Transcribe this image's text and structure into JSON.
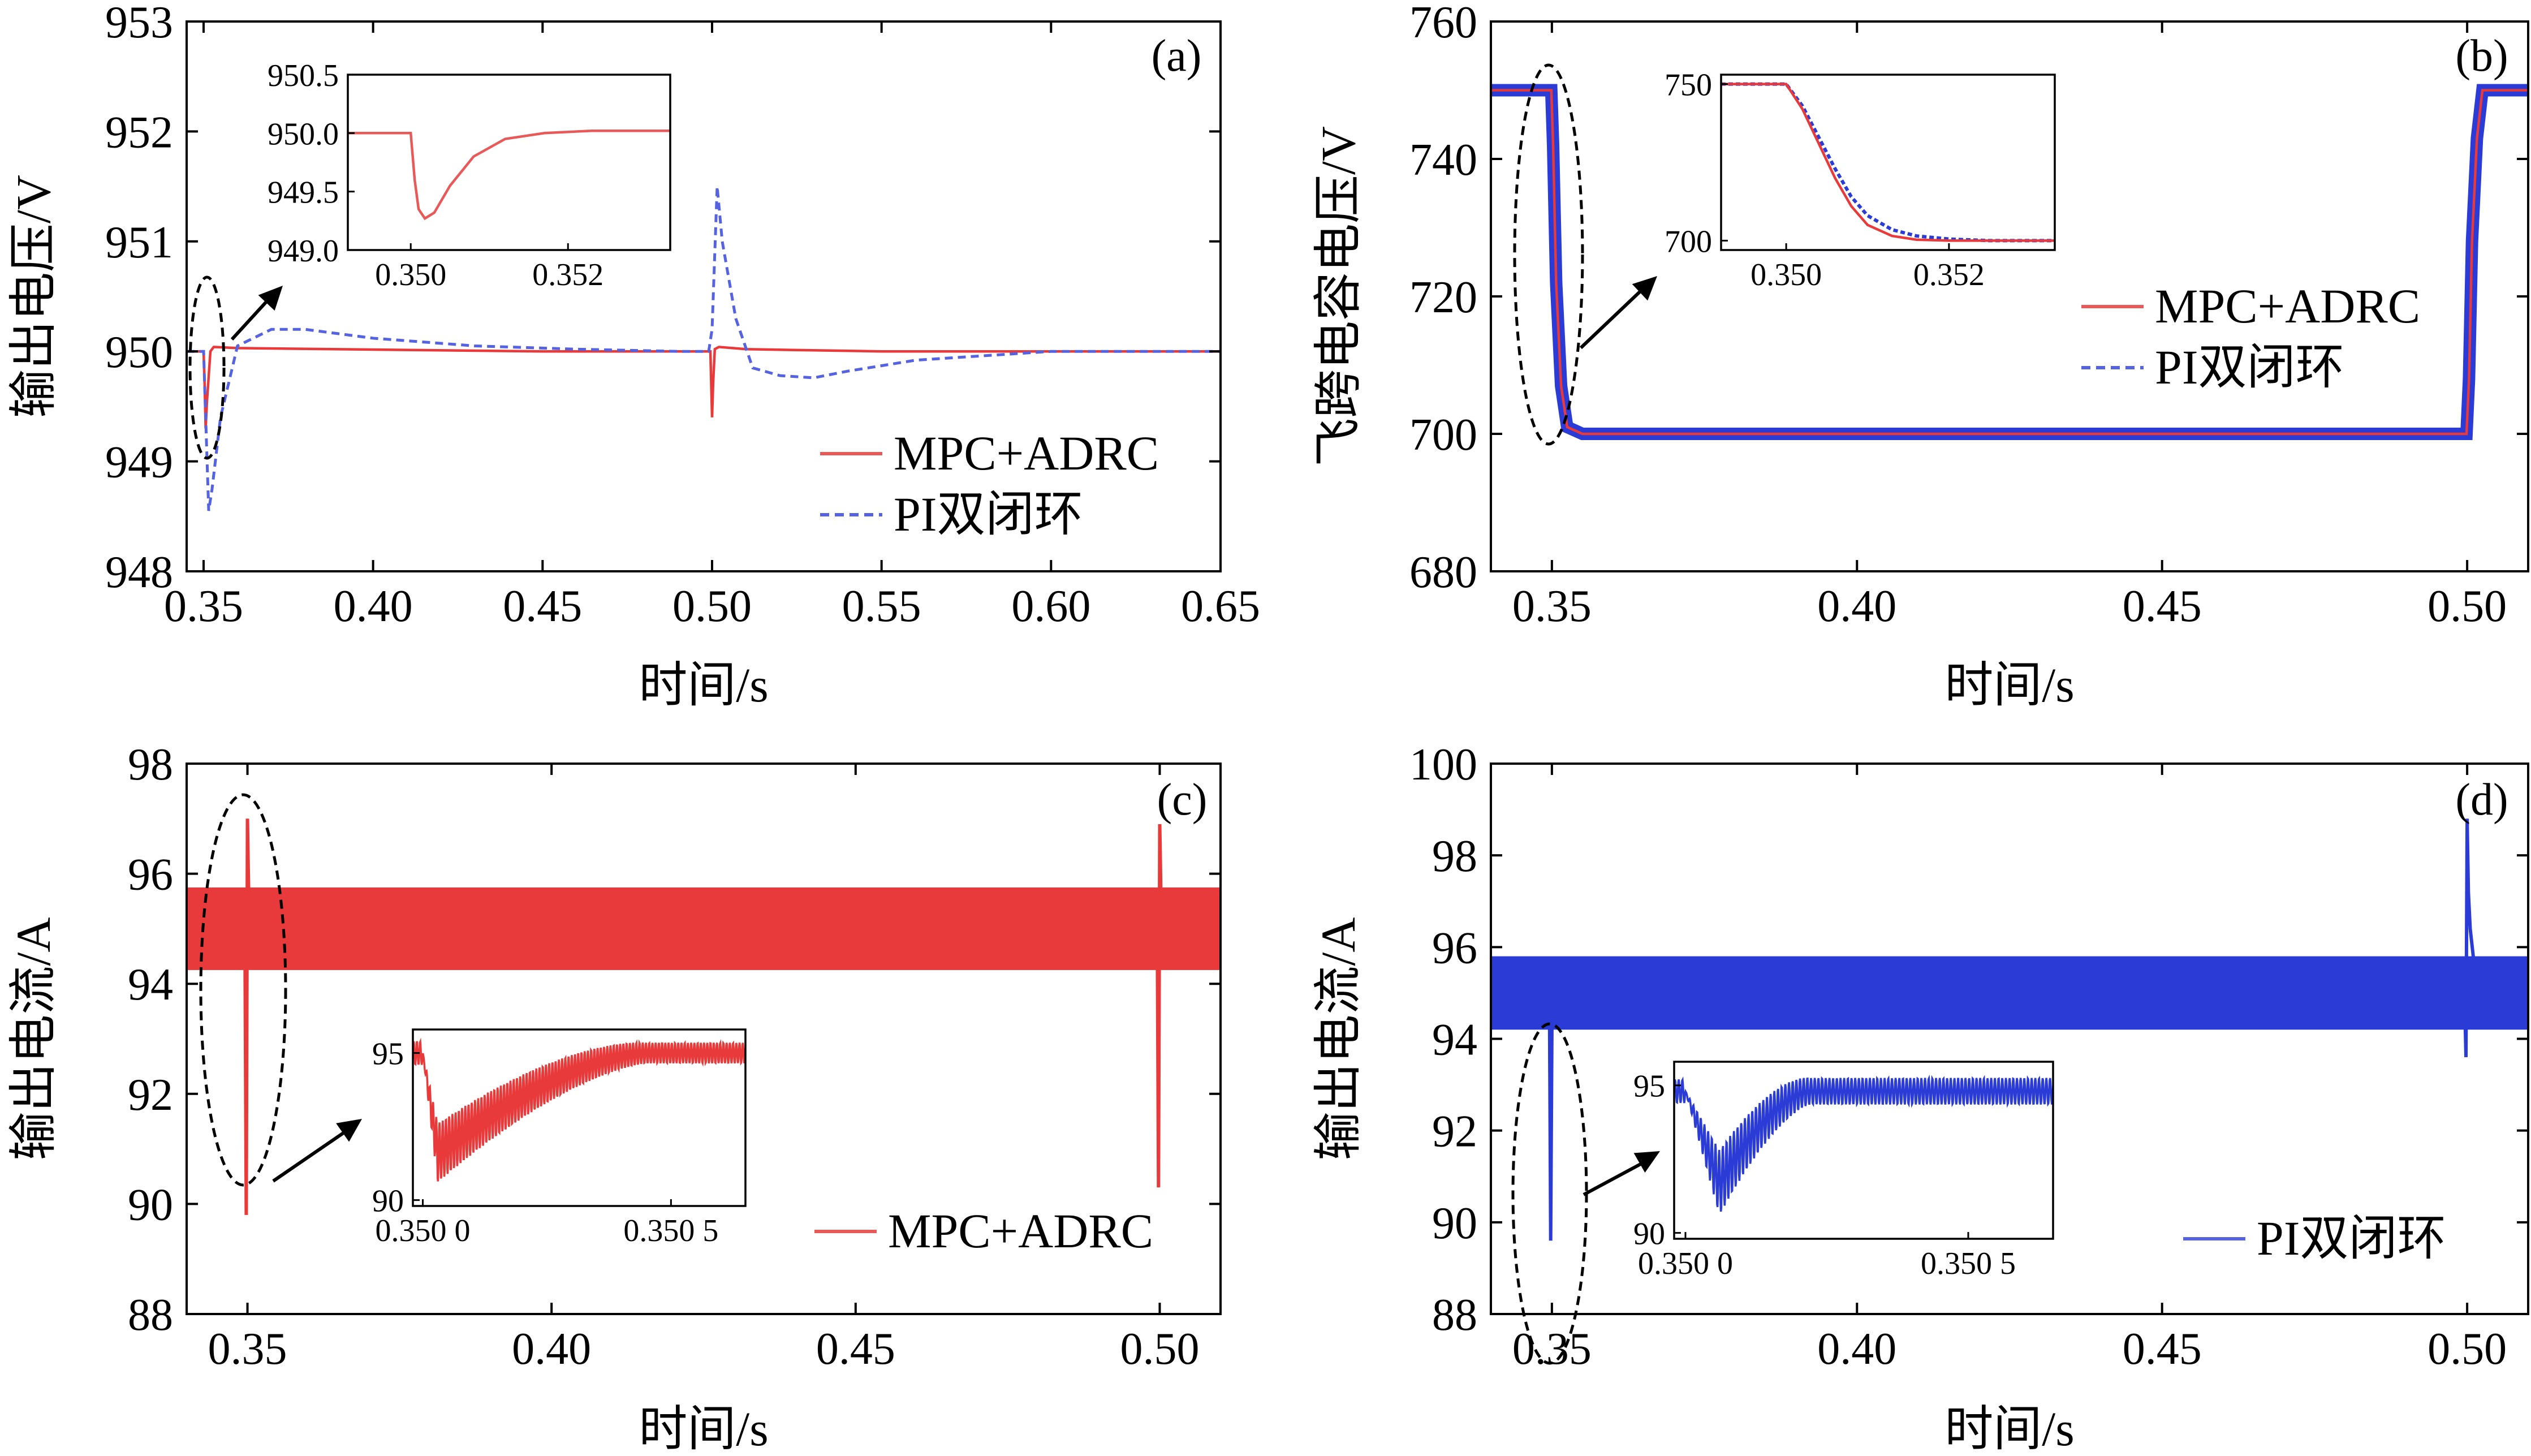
{
  "colors": {
    "mpc": "#e83a3a",
    "pi": "#2b3bd6",
    "mpc_light": "#e85a5a",
    "pi_light": "#5563e0"
  },
  "chart_data": [
    {
      "id": "a",
      "tag": "(a)",
      "type": "line",
      "xlabel": "时间/s",
      "ylabel": "输出电压/V",
      "xlim": [
        0.345,
        0.65
      ],
      "ylim": [
        948,
        953
      ],
      "xticks": [
        "0.35",
        "0.40",
        "0.45",
        "0.50",
        "0.55",
        "0.60",
        "0.65"
      ],
      "yticks": [
        "948",
        "949",
        "950",
        "951",
        "952",
        "953"
      ],
      "legend": [
        "MPC+ADRC",
        "PI双闭环"
      ],
      "series": [
        {
          "name": "MPC+ADRC",
          "style": "solid",
          "color": "#e83a3a",
          "x": [
            0.345,
            0.349,
            0.35,
            0.3503,
            0.3506,
            0.351,
            0.352,
            0.353,
            0.36,
            0.45,
            0.4995,
            0.5,
            0.5003,
            0.5008,
            0.502,
            0.51,
            0.55,
            0.65
          ],
          "y": [
            950.0,
            950.0,
            950.0,
            949.7,
            949.3,
            949.55,
            950.0,
            950.04,
            950.03,
            950.0,
            950.0,
            949.4,
            949.7,
            950.02,
            950.04,
            950.02,
            950.0,
            950.0
          ]
        },
        {
          "name": "PI双闭环",
          "style": "dashed",
          "color": "#5563e0",
          "x": [
            0.345,
            0.349,
            0.35,
            0.3505,
            0.3515,
            0.3525,
            0.355,
            0.36,
            0.37,
            0.38,
            0.4,
            0.43,
            0.46,
            0.49,
            0.499,
            0.5,
            0.5015,
            0.503,
            0.507,
            0.512,
            0.52,
            0.53,
            0.54,
            0.56,
            0.6,
            0.65
          ],
          "y": [
            950.0,
            950.0,
            950.0,
            949.5,
            948.55,
            948.75,
            949.4,
            950.05,
            950.2,
            950.2,
            950.12,
            950.05,
            950.02,
            950.0,
            950.0,
            950.2,
            951.5,
            951.0,
            950.3,
            949.85,
            949.78,
            949.76,
            949.82,
            949.92,
            950.0,
            950.0
          ]
        }
      ],
      "inset": {
        "xlim": [
          0.3492,
          0.3533
        ],
        "ylim": [
          949.0,
          950.5
        ],
        "xticks": [
          "0.350",
          "0.352"
        ],
        "yticks": [
          "949.0",
          "949.5",
          "950.0",
          "950.5"
        ],
        "series": [
          {
            "name": "MPC+ADRC",
            "style": "solid",
            "color": "#e85a5a",
            "x": [
              0.3492,
              0.3497,
              0.3499,
              0.35,
              0.35005,
              0.3501,
              0.35018,
              0.3503,
              0.3505,
              0.3508,
              0.3512,
              0.3517,
              0.3523,
              0.3533
            ],
            "y": [
              950.0,
              950.0,
              950.0,
              950.0,
              949.6,
              949.35,
              949.27,
              949.32,
              949.55,
              949.8,
              949.95,
              950.0,
              950.02,
              950.02
            ]
          }
        ]
      }
    },
    {
      "id": "b",
      "tag": "(b)",
      "type": "line",
      "xlabel": "时间/s",
      "ylabel": "飞跨电容电压/V",
      "xlim": [
        0.34,
        0.51
      ],
      "ylim": [
        680,
        760
      ],
      "xticks": [
        "0.35",
        "0.40",
        "0.45",
        "0.50"
      ],
      "yticks": [
        "680",
        "700",
        "720",
        "740",
        "760"
      ],
      "legend": [
        "MPC+ADRC",
        "PI双闭环"
      ],
      "series": [
        {
          "name": "PI双闭环",
          "style": "band",
          "color": "#2b3bd6",
          "x": [
            0.34,
            0.3499,
            0.3502,
            0.3507,
            0.3515,
            0.3525,
            0.355,
            0.4999,
            0.5003,
            0.5008,
            0.5016,
            0.5025,
            0.51
          ],
          "y": [
            750,
            750,
            742,
            722,
            707,
            701,
            700,
            700,
            708,
            728,
            743,
            750,
            750
          ]
        },
        {
          "name": "MPC+ADRC",
          "style": "solid",
          "color": "#e83a3a",
          "x": [
            0.34,
            0.3499,
            0.3502,
            0.3507,
            0.3515,
            0.3525,
            0.355,
            0.4999,
            0.5003,
            0.5008,
            0.5016,
            0.5025,
            0.51
          ],
          "y": [
            750,
            750,
            742,
            722,
            707,
            701,
            700,
            700,
            708,
            728,
            743,
            750,
            750
          ]
        }
      ],
      "inset": {
        "xlim": [
          0.3492,
          0.3533
        ],
        "ylim": [
          697,
          753
        ],
        "xticks": [
          "0.350",
          "0.352"
        ],
        "yticks": [
          "700",
          "750"
        ],
        "series": [
          {
            "name": "PI双闭环",
            "style": "dashed",
            "color": "#2b3bd6",
            "x": [
              0.3492,
              0.35,
              0.3502,
              0.3504,
              0.3506,
              0.3508,
              0.351,
              0.3513,
              0.3516,
              0.352,
              0.3525,
              0.3533
            ],
            "y": [
              750,
              750,
              743,
              733,
              723,
              714,
              708,
              703.5,
              701.5,
              700.5,
              700,
              700
            ]
          },
          {
            "name": "MPC+ADRC",
            "style": "solid",
            "color": "#e83a3a",
            "x": [
              0.3492,
              0.35,
              0.3502,
              0.3504,
              0.3506,
              0.3508,
              0.351,
              0.3513,
              0.3516,
              0.352,
              0.3525,
              0.3533
            ],
            "y": [
              750,
              750,
              742,
              731,
              720,
              711,
              705,
              701.5,
              700.3,
              700,
              700,
              700
            ]
          }
        ]
      }
    },
    {
      "id": "c",
      "tag": "(c)",
      "type": "line",
      "xlabel": "时间/s",
      "ylabel": "输出电流/A",
      "xlim": [
        0.34,
        0.51
      ],
      "ylim": [
        88,
        98
      ],
      "xticks": [
        "0.35",
        "0.40",
        "0.45",
        "0.50"
      ],
      "yticks": [
        "88",
        "90",
        "92",
        "94",
        "96",
        "98"
      ],
      "legend": [
        "MPC+ADRC"
      ],
      "band": {
        "color": "#e83a3a",
        "low": 94.25,
        "high": 95.75
      },
      "series": [
        {
          "name": "MPC+ADRC",
          "style": "solid",
          "color": "#e83a3a",
          "x": [
            0.3496,
            0.3498,
            0.35,
            0.3502,
            0.3504,
            0.3506,
            0.3509
          ],
          "y": [
            94.5,
            89.8,
            97.0,
            95.6,
            94.8,
            95.3,
            95.0
          ]
        },
        {
          "name": "MPC+ADRC",
          "style": "solid",
          "color": "#e83a3a",
          "x": [
            0.4996,
            0.4998,
            0.5,
            0.5002,
            0.5004,
            0.5007
          ],
          "y": [
            94.8,
            90.3,
            96.9,
            95.6,
            95.2,
            95.0
          ]
        }
      ],
      "inset": {
        "xlim": [
          0.34998,
          0.35065
        ],
        "ylim": [
          89.8,
          95.8
        ],
        "xticks": [
          "0.350 0",
          "0.350 5"
        ],
        "yticks": [
          "90",
          "95"
        ],
        "osc": {
          "color": "#e83a3a",
          "t0": 0.35,
          "base": 95.0,
          "dip": 90.6,
          "tmin": 0.35003,
          "trec": 0.35045,
          "period": 6.5e-06,
          "amp_start": 2.0,
          "amp_end": 0.7,
          "pre_amp": 0.8
        }
      }
    },
    {
      "id": "d",
      "tag": "(d)",
      "type": "line",
      "xlabel": "时间/s",
      "ylabel": "输出电流/A",
      "xlim": [
        0.34,
        0.51
      ],
      "ylim": [
        88,
        100
      ],
      "xticks": [
        "0.35",
        "0.40",
        "0.45",
        "0.50"
      ],
      "yticks": [
        "88",
        "90",
        "92",
        "94",
        "96",
        "98",
        "100"
      ],
      "legend": [
        "PI双闭环"
      ],
      "band": {
        "color": "#2b3bd6",
        "low": 94.2,
        "high": 95.8
      },
      "series": [
        {
          "name": "PI双闭环",
          "style": "solid",
          "color": "#2b3bd6",
          "x": [
            0.3496,
            0.3498,
            0.35,
            0.3502,
            0.3505,
            0.351,
            0.352
          ],
          "y": [
            94.8,
            89.6,
            94.2,
            95.0,
            95.3,
            95.5,
            95.3
          ]
        },
        {
          "name": "PI双闭环",
          "style": "solid",
          "color": "#2b3bd6",
          "x": [
            0.4996,
            0.4998,
            0.5,
            0.5002,
            0.5005,
            0.501,
            0.502,
            0.504
          ],
          "y": [
            94.8,
            93.6,
            98.8,
            97.2,
            96.4,
            95.8,
            95.2,
            95.0
          ]
        }
      ],
      "inset": {
        "xlim": [
          0.34998,
          0.35065
        ],
        "ylim": [
          89.8,
          95.8
        ],
        "xticks": [
          "0.350 0",
          "0.350 5"
        ],
        "yticks": [
          "90",
          "95"
        ],
        "osc": {
          "color": "#2b3bd6",
          "t0": 0.35,
          "base": 94.8,
          "dip": 90.6,
          "tmin": 0.35006,
          "trec": 0.35022,
          "period": 6.5e-06,
          "amp_start": 2.2,
          "amp_end": 0.9,
          "pre_amp": 0.8
        }
      }
    }
  ]
}
